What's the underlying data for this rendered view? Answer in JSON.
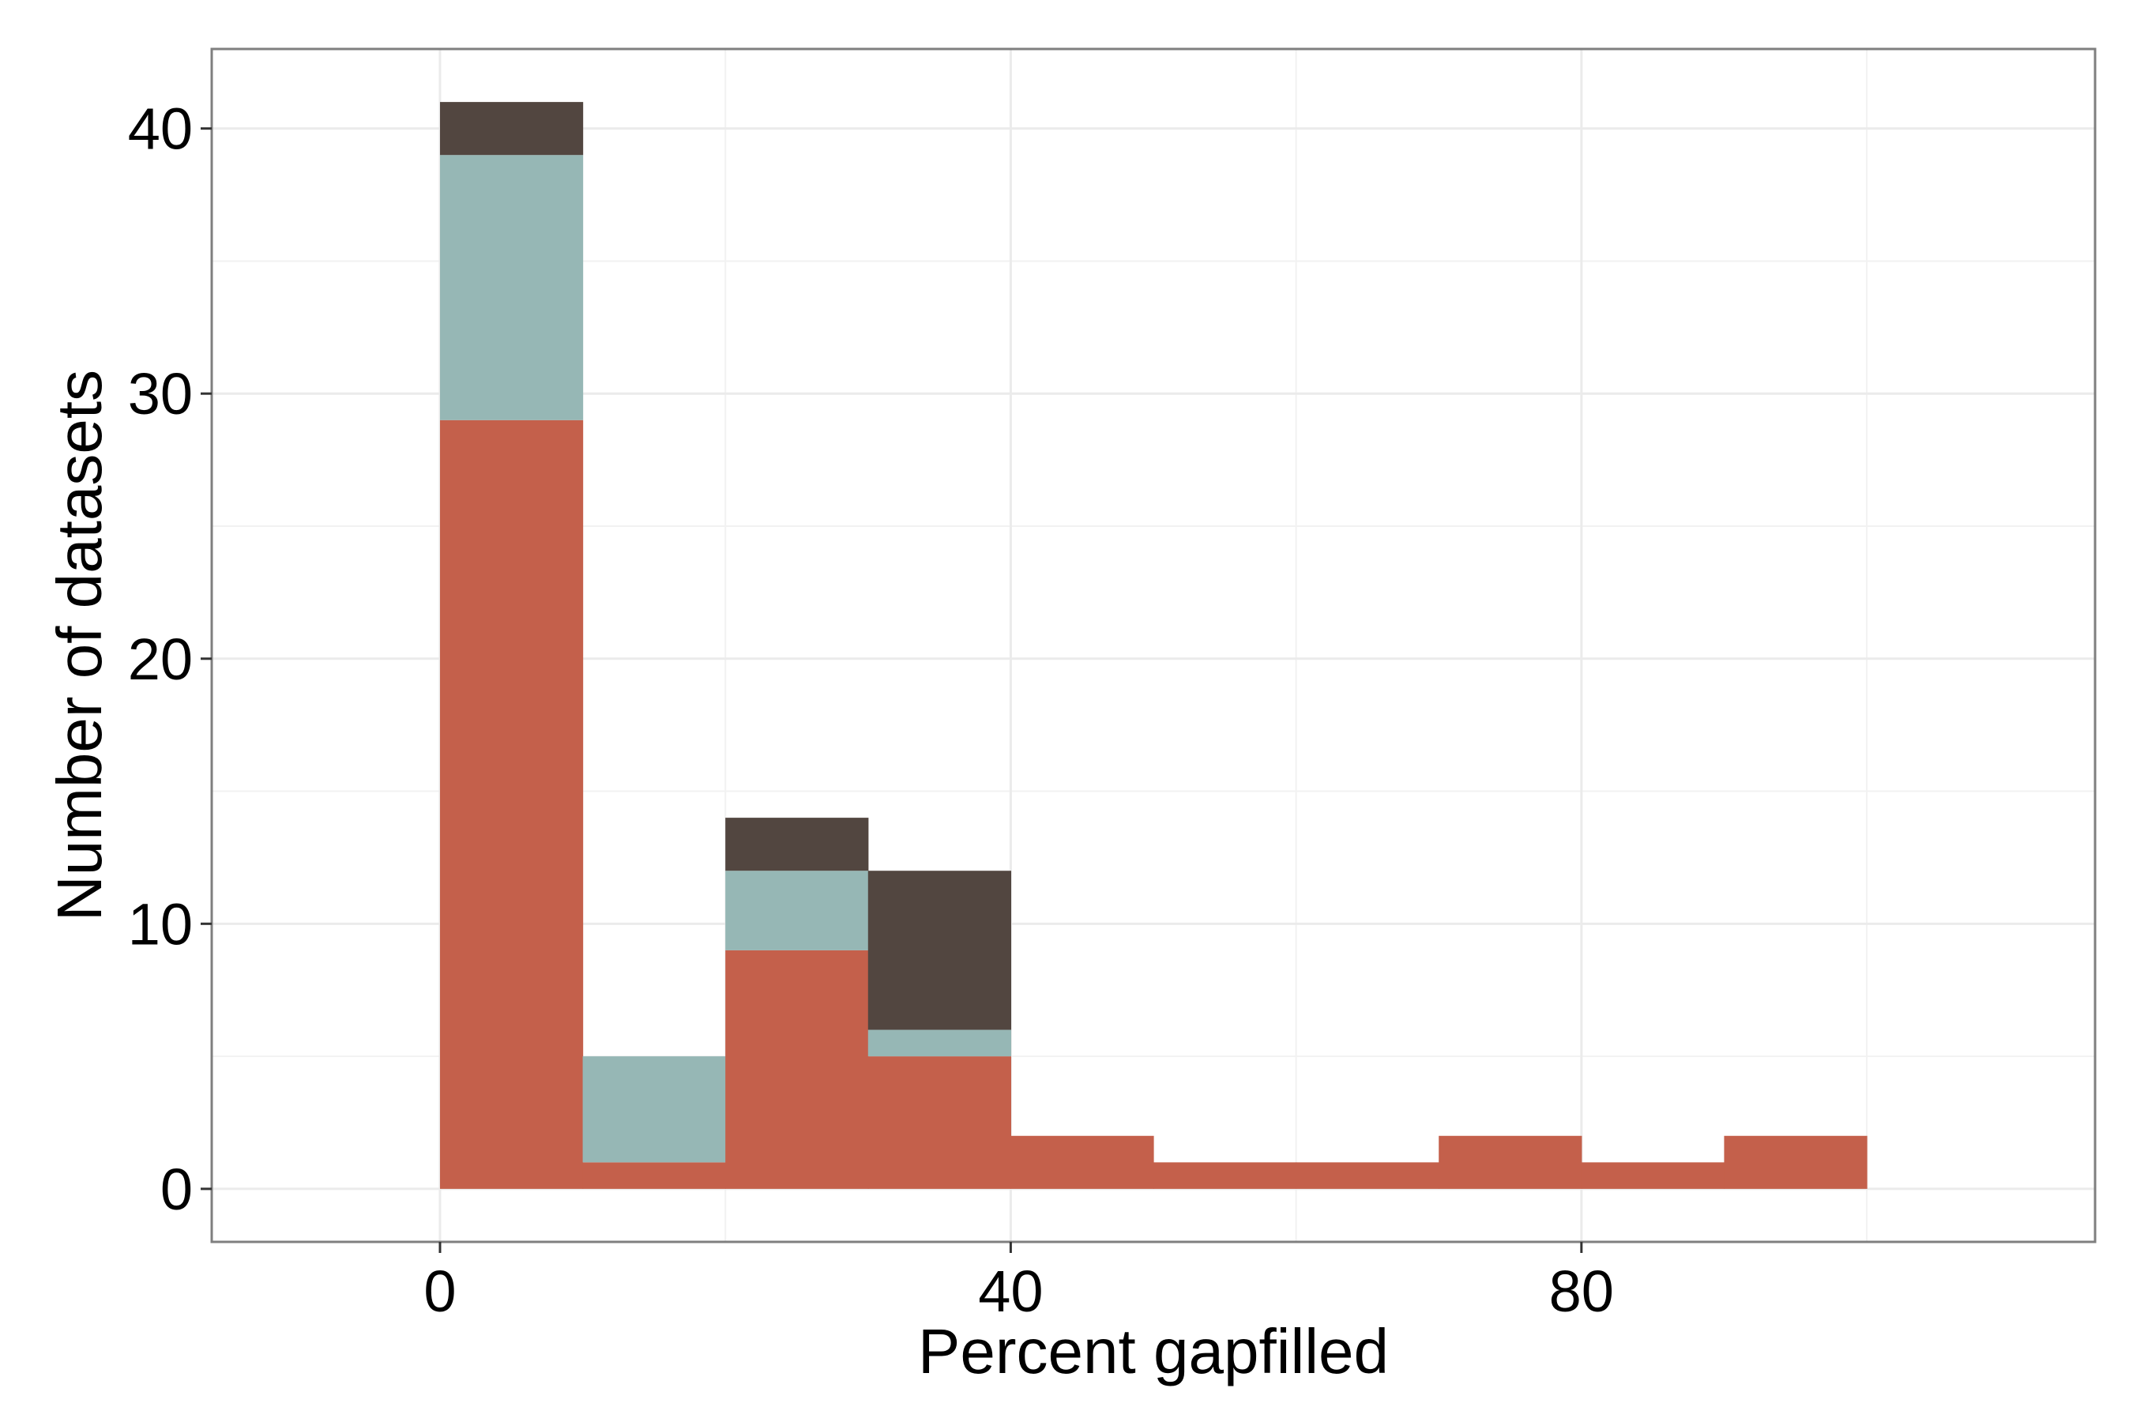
{
  "chart_data": {
    "type": "bar",
    "stacked": true,
    "title": "",
    "xlabel": "Percent gapfilled",
    "ylabel": "Number of datasets",
    "bin_width": 10,
    "x": [
      5,
      15,
      25,
      35,
      45,
      55,
      65,
      75,
      85,
      95
    ],
    "series": [
      {
        "color": "#c4604b",
        "values": [
          29,
          1,
          9,
          5,
          2,
          1,
          1,
          2,
          1,
          2
        ]
      },
      {
        "color": "#96b7b5",
        "values": [
          10,
          4,
          3,
          1,
          0,
          0,
          0,
          0,
          0,
          0
        ]
      },
      {
        "color": "#524640",
        "values": [
          2,
          0,
          2,
          6,
          0,
          0,
          0,
          0,
          0,
          0
        ]
      }
    ],
    "xlim": [
      -16,
      116
    ],
    "ylim": [
      -2,
      43
    ],
    "x_ticks": [
      0,
      40,
      80
    ],
    "y_ticks": [
      0,
      10,
      20,
      30,
      40
    ],
    "x_tick_labels": [
      "0",
      "40",
      "80"
    ],
    "y_tick_labels": [
      "0",
      "10",
      "20",
      "30",
      "40"
    ],
    "grid": true,
    "legend": "none"
  }
}
